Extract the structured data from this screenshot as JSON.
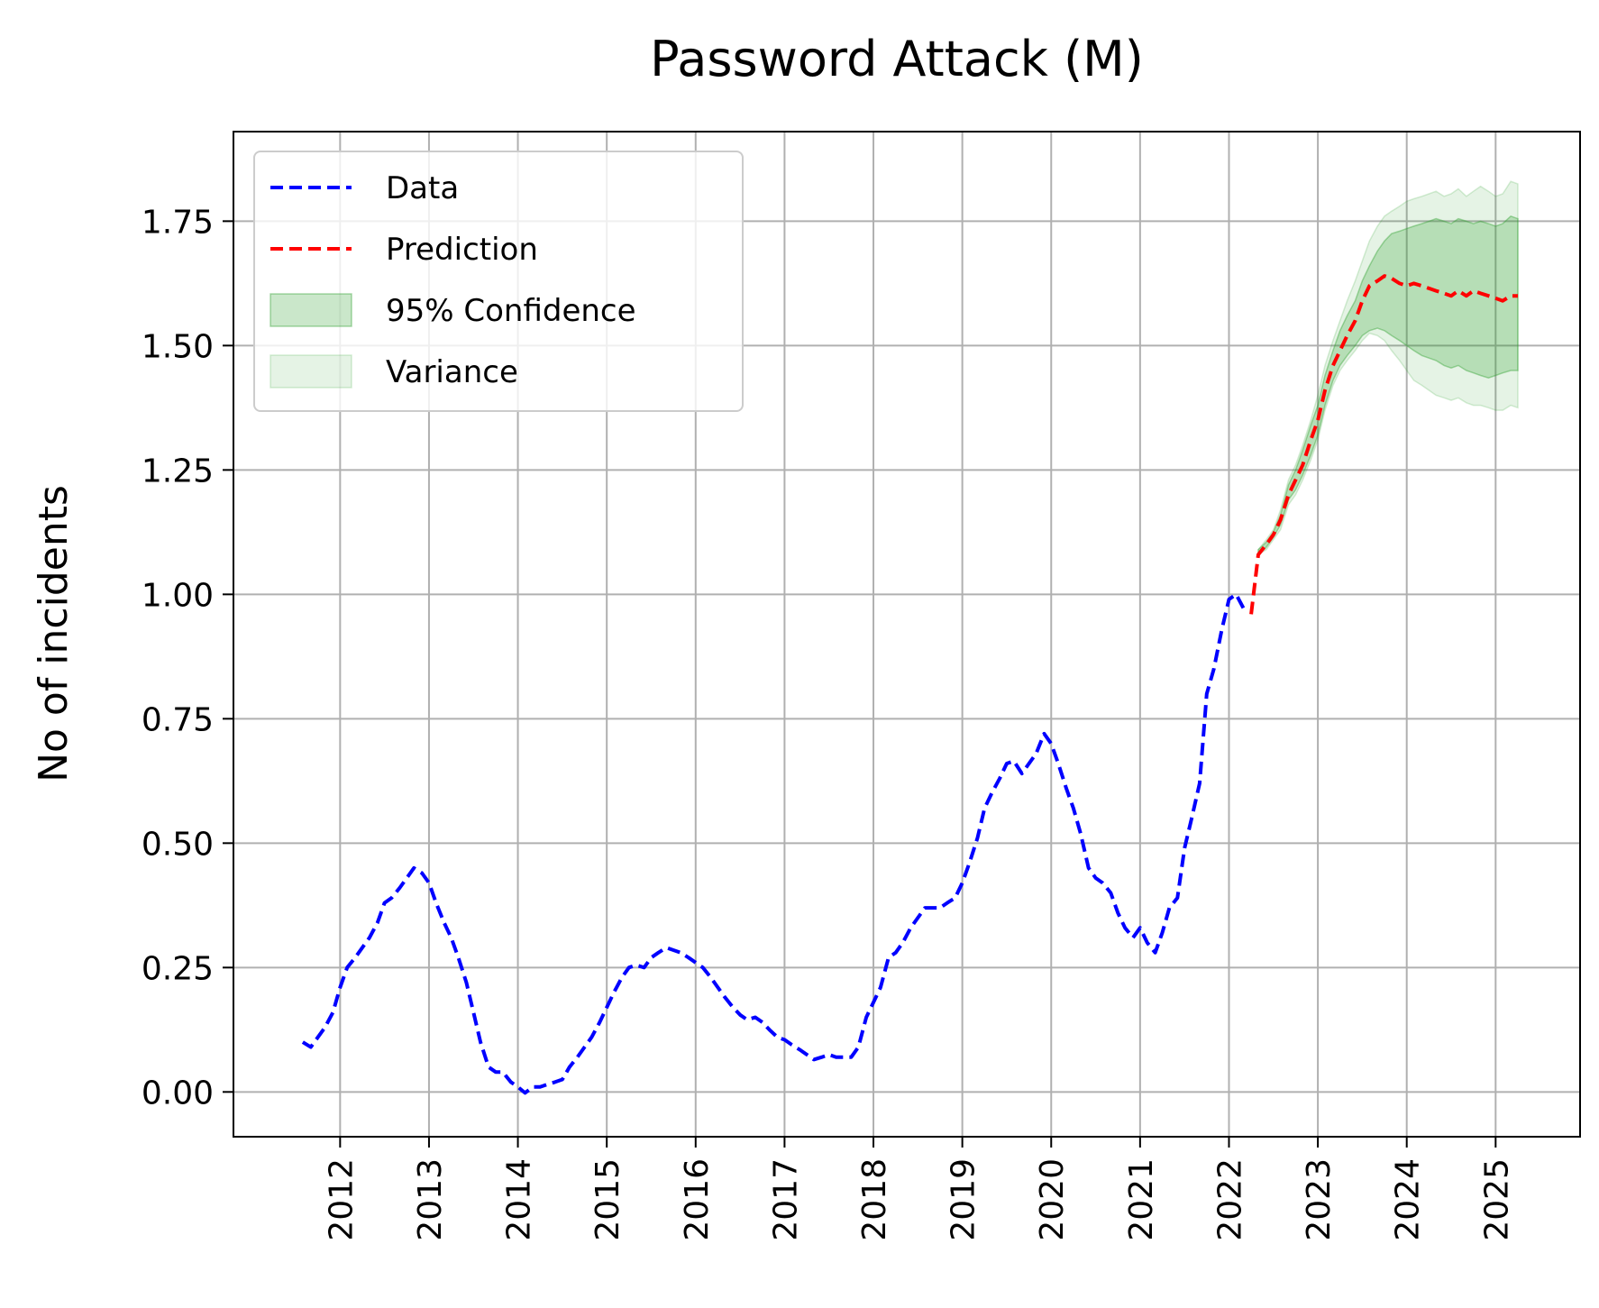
{
  "chart_data": {
    "type": "line",
    "title": "Password Attack (M)",
    "xlabel": "",
    "ylabel": "No of incidents",
    "xlim": [
      2010.8,
      2025.95
    ],
    "ylim": [
      -0.09,
      1.93
    ],
    "x_ticks": [
      "2012",
      "2013",
      "2014",
      "2015",
      "2016",
      "2017",
      "2018",
      "2019",
      "2020",
      "2021",
      "2022",
      "2023",
      "2024",
      "2025"
    ],
    "y_ticks": [
      "0.00",
      "0.25",
      "0.50",
      "0.75",
      "1.00",
      "1.25",
      "1.50",
      "1.75"
    ],
    "grid": true,
    "legend_position": "top-left",
    "series": [
      {
        "name": "Data",
        "color": "#0000ff",
        "style": "dashed",
        "points": [
          [
            2011.58,
            0.1
          ],
          [
            2011.67,
            0.09
          ],
          [
            2011.75,
            0.11
          ],
          [
            2011.83,
            0.13
          ],
          [
            2011.92,
            0.16
          ],
          [
            2012.0,
            0.21
          ],
          [
            2012.08,
            0.25
          ],
          [
            2012.17,
            0.27
          ],
          [
            2012.25,
            0.29
          ],
          [
            2012.33,
            0.31
          ],
          [
            2012.42,
            0.34
          ],
          [
            2012.5,
            0.38
          ],
          [
            2012.58,
            0.39
          ],
          [
            2012.67,
            0.41
          ],
          [
            2012.75,
            0.43
          ],
          [
            2012.83,
            0.45
          ],
          [
            2012.92,
            0.44
          ],
          [
            2013.0,
            0.42
          ],
          [
            2013.08,
            0.38
          ],
          [
            2013.17,
            0.34
          ],
          [
            2013.25,
            0.31
          ],
          [
            2013.33,
            0.27
          ],
          [
            2013.42,
            0.22
          ],
          [
            2013.5,
            0.16
          ],
          [
            2013.58,
            0.1
          ],
          [
            2013.67,
            0.05
          ],
          [
            2013.75,
            0.04
          ],
          [
            2013.83,
            0.04
          ],
          [
            2013.92,
            0.02
          ],
          [
            2014.0,
            0.01
          ],
          [
            2014.08,
            -0.002
          ],
          [
            2014.17,
            0.01
          ],
          [
            2014.25,
            0.01
          ],
          [
            2014.33,
            0.015
          ],
          [
            2014.42,
            0.02
          ],
          [
            2014.5,
            0.025
          ],
          [
            2014.58,
            0.05
          ],
          [
            2014.67,
            0.07
          ],
          [
            2014.75,
            0.09
          ],
          [
            2014.83,
            0.11
          ],
          [
            2014.92,
            0.14
          ],
          [
            2015.0,
            0.17
          ],
          [
            2015.08,
            0.2
          ],
          [
            2015.17,
            0.23
          ],
          [
            2015.25,
            0.25
          ],
          [
            2015.33,
            0.255
          ],
          [
            2015.42,
            0.25
          ],
          [
            2015.5,
            0.27
          ],
          [
            2015.58,
            0.28
          ],
          [
            2015.67,
            0.29
          ],
          [
            2015.75,
            0.285
          ],
          [
            2015.83,
            0.28
          ],
          [
            2015.92,
            0.27
          ],
          [
            2016.0,
            0.26
          ],
          [
            2016.08,
            0.25
          ],
          [
            2016.17,
            0.23
          ],
          [
            2016.25,
            0.21
          ],
          [
            2016.33,
            0.19
          ],
          [
            2016.42,
            0.17
          ],
          [
            2016.5,
            0.155
          ],
          [
            2016.58,
            0.145
          ],
          [
            2016.67,
            0.15
          ],
          [
            2016.75,
            0.14
          ],
          [
            2016.83,
            0.125
          ],
          [
            2016.92,
            0.11
          ],
          [
            2017.0,
            0.105
          ],
          [
            2017.08,
            0.095
          ],
          [
            2017.17,
            0.085
          ],
          [
            2017.25,
            0.075
          ],
          [
            2017.33,
            0.065
          ],
          [
            2017.42,
            0.07
          ],
          [
            2017.5,
            0.075
          ],
          [
            2017.58,
            0.07
          ],
          [
            2017.67,
            0.07
          ],
          [
            2017.75,
            0.07
          ],
          [
            2017.83,
            0.09
          ],
          [
            2017.92,
            0.15
          ],
          [
            2018.0,
            0.18
          ],
          [
            2018.08,
            0.21
          ],
          [
            2018.17,
            0.27
          ],
          [
            2018.25,
            0.28
          ],
          [
            2018.33,
            0.3
          ],
          [
            2018.42,
            0.33
          ],
          [
            2018.5,
            0.35
          ],
          [
            2018.58,
            0.37
          ],
          [
            2018.67,
            0.37
          ],
          [
            2018.75,
            0.37
          ],
          [
            2018.83,
            0.38
          ],
          [
            2018.92,
            0.39
          ],
          [
            2019.0,
            0.42
          ],
          [
            2019.08,
            0.46
          ],
          [
            2019.17,
            0.51
          ],
          [
            2019.25,
            0.57
          ],
          [
            2019.33,
            0.6
          ],
          [
            2019.42,
            0.63
          ],
          [
            2019.5,
            0.66
          ],
          [
            2019.58,
            0.665
          ],
          [
            2019.67,
            0.64
          ],
          [
            2019.75,
            0.66
          ],
          [
            2019.83,
            0.68
          ],
          [
            2019.92,
            0.72
          ],
          [
            2020.0,
            0.7
          ],
          [
            2020.08,
            0.66
          ],
          [
            2020.17,
            0.61
          ],
          [
            2020.25,
            0.57
          ],
          [
            2020.33,
            0.52
          ],
          [
            2020.42,
            0.45
          ],
          [
            2020.5,
            0.43
          ],
          [
            2020.58,
            0.42
          ],
          [
            2020.67,
            0.4
          ],
          [
            2020.75,
            0.36
          ],
          [
            2020.83,
            0.33
          ],
          [
            2020.92,
            0.31
          ],
          [
            2021.0,
            0.33
          ],
          [
            2021.08,
            0.3
          ],
          [
            2021.17,
            0.28
          ],
          [
            2021.25,
            0.32
          ],
          [
            2021.33,
            0.37
          ],
          [
            2021.42,
            0.39
          ],
          [
            2021.5,
            0.49
          ],
          [
            2021.58,
            0.55
          ],
          [
            2021.67,
            0.62
          ],
          [
            2021.75,
            0.8
          ],
          [
            2021.83,
            0.85
          ],
          [
            2021.92,
            0.93
          ],
          [
            2022.0,
            0.99
          ],
          [
            2022.08,
            1.0
          ],
          [
            2022.17,
            0.97
          ]
        ]
      },
      {
        "name": "Prediction",
        "color": "#ff0000",
        "style": "dashed",
        "points": [
          [
            2022.25,
            0.96
          ],
          [
            2022.33,
            1.08
          ],
          [
            2022.42,
            1.1
          ],
          [
            2022.5,
            1.12
          ],
          [
            2022.58,
            1.15
          ],
          [
            2022.67,
            1.2
          ],
          [
            2022.75,
            1.23
          ],
          [
            2022.83,
            1.26
          ],
          [
            2022.92,
            1.31
          ],
          [
            2023.0,
            1.35
          ],
          [
            2023.08,
            1.41
          ],
          [
            2023.17,
            1.46
          ],
          [
            2023.25,
            1.49
          ],
          [
            2023.33,
            1.52
          ],
          [
            2023.42,
            1.55
          ],
          [
            2023.5,
            1.59
          ],
          [
            2023.58,
            1.62
          ],
          [
            2023.67,
            1.63
          ],
          [
            2023.75,
            1.64
          ],
          [
            2023.83,
            1.635
          ],
          [
            2023.92,
            1.625
          ],
          [
            2024.0,
            1.62
          ],
          [
            2024.08,
            1.625
          ],
          [
            2024.17,
            1.62
          ],
          [
            2024.25,
            1.615
          ],
          [
            2024.33,
            1.61
          ],
          [
            2024.42,
            1.605
          ],
          [
            2024.5,
            1.6
          ],
          [
            2024.58,
            1.61
          ],
          [
            2024.67,
            1.6
          ],
          [
            2024.75,
            1.61
          ],
          [
            2024.83,
            1.605
          ],
          [
            2024.92,
            1.6
          ],
          [
            2025.0,
            1.595
          ],
          [
            2025.08,
            1.59
          ],
          [
            2025.17,
            1.6
          ],
          [
            2025.25,
            1.6
          ]
        ]
      }
    ],
    "bands": [
      {
        "name": "Variance",
        "color": "#2ca02c",
        "opacity": 0.12,
        "x": [
          2022.33,
          2022.42,
          2022.5,
          2022.58,
          2022.67,
          2022.75,
          2022.83,
          2022.92,
          2023.0,
          2023.08,
          2023.17,
          2023.25,
          2023.33,
          2023.42,
          2023.5,
          2023.58,
          2023.67,
          2023.75,
          2023.83,
          2023.92,
          2024.0,
          2024.08,
          2024.17,
          2024.25,
          2024.33,
          2024.42,
          2024.5,
          2024.58,
          2024.67,
          2024.75,
          2024.83,
          2024.92,
          2025.0,
          2025.08,
          2025.17,
          2025.25
        ],
        "lower": [
          1.08,
          1.09,
          1.11,
          1.13,
          1.18,
          1.2,
          1.23,
          1.27,
          1.31,
          1.37,
          1.42,
          1.45,
          1.47,
          1.49,
          1.51,
          1.525,
          1.52,
          1.51,
          1.49,
          1.47,
          1.45,
          1.43,
          1.42,
          1.41,
          1.4,
          1.395,
          1.39,
          1.395,
          1.385,
          1.38,
          1.38,
          1.375,
          1.37,
          1.37,
          1.38,
          1.375
        ],
        "upper": [
          1.09,
          1.11,
          1.13,
          1.17,
          1.23,
          1.26,
          1.3,
          1.35,
          1.4,
          1.46,
          1.51,
          1.55,
          1.59,
          1.63,
          1.67,
          1.71,
          1.74,
          1.76,
          1.77,
          1.78,
          1.79,
          1.795,
          1.8,
          1.805,
          1.81,
          1.8,
          1.805,
          1.815,
          1.8,
          1.81,
          1.82,
          1.81,
          1.8,
          1.805,
          1.83,
          1.825
        ]
      },
      {
        "name": "95% Confidence",
        "color": "#2ca02c",
        "opacity": 0.25,
        "x": [
          2022.33,
          2022.42,
          2022.5,
          2022.58,
          2022.67,
          2022.75,
          2022.83,
          2022.92,
          2023.0,
          2023.08,
          2023.17,
          2023.25,
          2023.33,
          2023.42,
          2023.5,
          2023.58,
          2023.67,
          2023.75,
          2023.83,
          2023.92,
          2024.0,
          2024.08,
          2024.17,
          2024.25,
          2024.33,
          2024.42,
          2024.5,
          2024.58,
          2024.67,
          2024.75,
          2024.83,
          2024.92,
          2025.0,
          2025.08,
          2025.17,
          2025.25
        ],
        "lower": [
          1.08,
          1.095,
          1.115,
          1.14,
          1.19,
          1.21,
          1.24,
          1.28,
          1.32,
          1.38,
          1.43,
          1.46,
          1.48,
          1.5,
          1.52,
          1.53,
          1.535,
          1.53,
          1.52,
          1.51,
          1.5,
          1.49,
          1.48,
          1.475,
          1.47,
          1.46,
          1.455,
          1.46,
          1.45,
          1.445,
          1.44,
          1.435,
          1.44,
          1.445,
          1.45,
          1.45
        ],
        "upper": [
          1.09,
          1.105,
          1.125,
          1.16,
          1.22,
          1.25,
          1.29,
          1.34,
          1.38,
          1.44,
          1.49,
          1.53,
          1.56,
          1.59,
          1.63,
          1.66,
          1.69,
          1.71,
          1.725,
          1.73,
          1.735,
          1.74,
          1.745,
          1.75,
          1.755,
          1.75,
          1.745,
          1.755,
          1.75,
          1.745,
          1.75,
          1.745,
          1.74,
          1.745,
          1.76,
          1.755
        ]
      }
    ],
    "legend": [
      {
        "label": "Data",
        "kind": "line",
        "color": "#0000ff"
      },
      {
        "label": "Prediction",
        "kind": "line",
        "color": "#ff0000"
      },
      {
        "label": "95% Confidence",
        "kind": "patch",
        "color": "#2ca02c",
        "opacity": 0.25
      },
      {
        "label": "Variance",
        "kind": "patch",
        "color": "#2ca02c",
        "opacity": 0.12
      }
    ]
  }
}
